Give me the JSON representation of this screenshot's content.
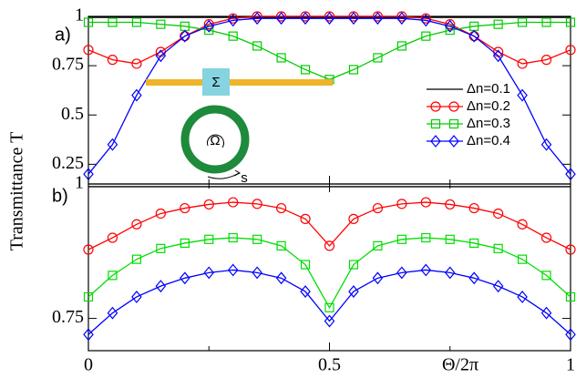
{
  "chart_data": [
    {
      "type": "line",
      "panel_label": "a)",
      "ylabel": "Transmittance T",
      "x": [
        0,
        0.05,
        0.1,
        0.15,
        0.2,
        0.25,
        0.3,
        0.35,
        0.4,
        0.45,
        0.5,
        0.55,
        0.6,
        0.65,
        0.7,
        0.75,
        0.8,
        0.85,
        0.9,
        0.95,
        1
      ],
      "xlim": [
        0,
        1
      ],
      "ylim": [
        0.15,
        1.0
      ],
      "yticks": [
        0.25,
        0.5,
        0.75,
        1
      ],
      "legend": "upper right",
      "annotations": [
        "Σ",
        "Ω",
        "s"
      ],
      "series": [
        {
          "name": "Δn=0.1",
          "color": "#000000",
          "marker": "none",
          "values": [
            0.995,
            0.995,
            0.995,
            0.995,
            0.995,
            0.995,
            0.995,
            0.995,
            0.995,
            0.995,
            0.995,
            0.995,
            0.995,
            0.995,
            0.995,
            0.995,
            0.995,
            0.995,
            0.995,
            0.995,
            0.995
          ]
        },
        {
          "name": "Δn=0.2",
          "color": "#ff0000",
          "marker": "circle",
          "values": [
            0.83,
            0.78,
            0.76,
            0.82,
            0.9,
            0.96,
            0.99,
            1,
            1,
            1,
            1,
            1,
            1,
            1,
            0.99,
            0.96,
            0.9,
            0.82,
            0.76,
            0.78,
            0.83
          ]
        },
        {
          "name": "Δn=0.3",
          "color": "#00cc00",
          "marker": "square",
          "values": [
            0.97,
            0.97,
            0.97,
            0.96,
            0.95,
            0.93,
            0.9,
            0.85,
            0.79,
            0.73,
            0.68,
            0.73,
            0.79,
            0.85,
            0.9,
            0.93,
            0.95,
            0.96,
            0.97,
            0.97,
            0.97
          ]
        },
        {
          "name": "Δn=0.4",
          "color": "#0000ff",
          "marker": "diamond",
          "values": [
            0.2,
            0.35,
            0.6,
            0.8,
            0.9,
            0.95,
            0.98,
            0.99,
            0.99,
            0.99,
            0.99,
            0.99,
            0.99,
            0.99,
            0.98,
            0.95,
            0.9,
            0.8,
            0.6,
            0.35,
            0.2
          ]
        }
      ]
    },
    {
      "type": "line",
      "panel_label": "b)",
      "xlabel": "Θ/2π",
      "x": [
        0,
        0.05,
        0.1,
        0.15,
        0.2,
        0.25,
        0.3,
        0.35,
        0.4,
        0.45,
        0.5,
        0.55,
        0.6,
        0.65,
        0.7,
        0.75,
        0.8,
        0.85,
        0.9,
        0.95,
        1
      ],
      "xlim": [
        0,
        1
      ],
      "ylim": [
        0.69,
        1.0
      ],
      "yticks": [
        0.75,
        1
      ],
      "xticks": [
        0,
        0.5,
        1
      ],
      "xminorticks": [
        0.25,
        0.75
      ],
      "series": [
        {
          "color": "#000000",
          "marker": "none",
          "values": [
            0.995,
            0.995,
            0.995,
            0.995,
            0.995,
            0.995,
            0.995,
            0.995,
            0.995,
            0.995,
            0.995,
            0.995,
            0.995,
            0.995,
            0.995,
            0.995,
            0.995,
            0.995,
            0.995,
            0.995,
            0.995
          ]
        },
        {
          "color": "#ff0000",
          "marker": "circle",
          "values": [
            0.878,
            0.9,
            0.925,
            0.945,
            0.955,
            0.962,
            0.966,
            0.963,
            0.955,
            0.935,
            0.885,
            0.935,
            0.955,
            0.963,
            0.966,
            0.962,
            0.955,
            0.945,
            0.925,
            0.9,
            0.878
          ]
        },
        {
          "color": "#00dd00",
          "marker": "square",
          "values": [
            0.79,
            0.83,
            0.86,
            0.88,
            0.89,
            0.897,
            0.9,
            0.897,
            0.885,
            0.85,
            0.77,
            0.85,
            0.885,
            0.897,
            0.9,
            0.897,
            0.89,
            0.88,
            0.86,
            0.83,
            0.79
          ]
        },
        {
          "color": "#0000ff",
          "marker": "diamond",
          "values": [
            0.72,
            0.76,
            0.79,
            0.81,
            0.825,
            0.835,
            0.84,
            0.835,
            0.825,
            0.8,
            0.745,
            0.8,
            0.825,
            0.835,
            0.84,
            0.835,
            0.825,
            0.81,
            0.79,
            0.76,
            0.72
          ]
        }
      ]
    }
  ]
}
